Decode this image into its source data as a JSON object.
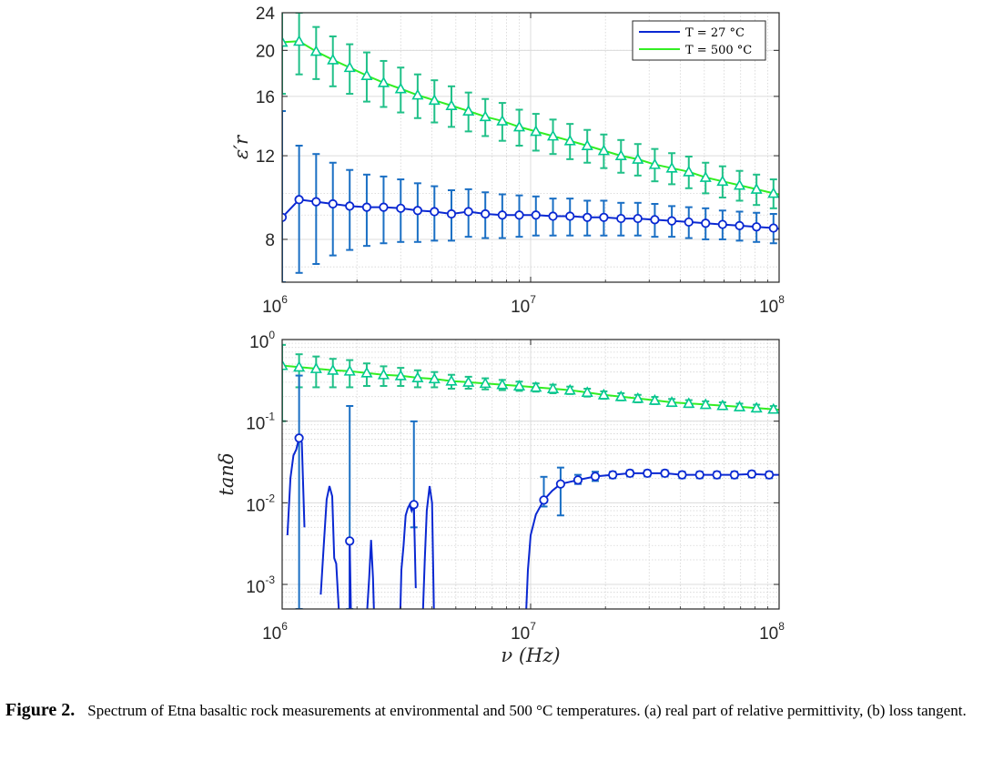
{
  "figure": {
    "label": "Figure 2.",
    "caption": "Spectrum of Etna basaltic rock measurements at environmental and 500 °C temperatures. (a) real part of relative permittivity, (b) loss tangent."
  },
  "colors": {
    "t27": "#0a28d2",
    "t500": "#33ee22",
    "marker500": "#00c890",
    "err27": "#1a6fc4",
    "err500": "#20c088"
  },
  "chart_data": [
    {
      "type": "line",
      "panel": "a",
      "ylabel": "ε′r",
      "x_scale": "log",
      "y_scale": "log",
      "xlim": [
        1000000,
        100000000
      ],
      "ylim": [
        6.5,
        24
      ],
      "x_ticks": [
        {
          "base": "10",
          "exp": "6",
          "value": 1000000
        },
        {
          "base": "10",
          "exp": "7",
          "value": 10000000
        },
        {
          "base": "10",
          "exp": "8",
          "value": 100000000
        }
      ],
      "y_ticks": [
        {
          "label": "8",
          "value": 8
        },
        {
          "label": "12",
          "value": 12
        },
        {
          "label": "16",
          "value": 16
        },
        {
          "label": "20",
          "value": 20
        },
        {
          "label": "24",
          "value": 24
        }
      ],
      "grid": true,
      "legend": {
        "placement": "top-right",
        "entries": [
          "T = 27 °C",
          "T = 500 °C"
        ]
      },
      "x": [
        1000000,
        1170000,
        1370000,
        1600000,
        1870000,
        2190000,
        2560000,
        3000000,
        3510000,
        4100000,
        4800000,
        5620000,
        6570000,
        7690000,
        9000000,
        10500000,
        12300000,
        14400000,
        16900000,
        19700000,
        23100000,
        27000000,
        31600000,
        37000000,
        43300000,
        50600000,
        59200000,
        69300000,
        81100000,
        94900000
      ],
      "series": [
        {
          "name": "T = 27 °C",
          "values": [
            8.9,
            9.7,
            9.6,
            9.5,
            9.4,
            9.35,
            9.35,
            9.3,
            9.2,
            9.15,
            9.05,
            9.15,
            9.05,
            9.0,
            9.0,
            9.0,
            8.95,
            8.95,
            8.9,
            8.9,
            8.85,
            8.85,
            8.8,
            8.75,
            8.7,
            8.65,
            8.6,
            8.55,
            8.5,
            8.45
          ],
          "error": [
            6.0,
            2.9,
            2.5,
            2.1,
            1.8,
            1.6,
            1.5,
            1.4,
            1.3,
            1.2,
            1.1,
            1.05,
            1.0,
            0.95,
            0.9,
            0.85,
            0.8,
            0.8,
            0.75,
            0.75,
            0.7,
            0.7,
            0.7,
            0.65,
            0.65,
            0.65,
            0.6,
            0.6,
            0.6,
            0.6
          ]
        },
        {
          "name": "T = 500 °C",
          "values": [
            20.8,
            20.9,
            19.9,
            19.1,
            18.4,
            17.7,
            17.1,
            16.6,
            16.1,
            15.7,
            15.3,
            14.9,
            14.5,
            14.2,
            13.8,
            13.5,
            13.2,
            12.9,
            12.6,
            12.3,
            12.0,
            11.8,
            11.5,
            11.3,
            11.1,
            10.8,
            10.6,
            10.4,
            10.2,
            10.0
          ],
          "error": [
            4.6,
            3.1,
            2.5,
            2.3,
            2.2,
            2.1,
            1.9,
            1.8,
            1.7,
            1.6,
            1.5,
            1.4,
            1.3,
            1.3,
            1.2,
            1.2,
            1.1,
            1.1,
            1.0,
            1.0,
            0.95,
            0.9,
            0.9,
            0.85,
            0.85,
            0.8,
            0.8,
            0.75,
            0.75,
            0.7
          ]
        }
      ]
    },
    {
      "type": "line",
      "panel": "b",
      "ylabel": "tanδ",
      "xlabel": "ν (Hz)",
      "x_scale": "log",
      "y_scale": "log",
      "xlim": [
        1000000,
        100000000
      ],
      "ylim": [
        0.0005,
        1
      ],
      "x_ticks": [
        {
          "base": "10",
          "exp": "6",
          "value": 1000000
        },
        {
          "base": "10",
          "exp": "7",
          "value": 10000000
        },
        {
          "base": "10",
          "exp": "8",
          "value": 100000000
        }
      ],
      "y_ticks": [
        {
          "base": "10",
          "exp": "-3",
          "value": 0.001
        },
        {
          "base": "10",
          "exp": "-2",
          "value": 0.01
        },
        {
          "base": "10",
          "exp": "-1",
          "value": 0.1
        },
        {
          "base": "10",
          "exp": "0",
          "value": 1
        }
      ],
      "grid": true,
      "series": [
        {
          "name": "T = 27 °C",
          "points": [
            [
              1170000,
              0.062
            ],
            [
              1870000,
              0.0034
            ],
            [
              3390000,
              0.0095
            ],
            [
              11300000,
              0.0108
            ],
            [
              13200000,
              0.017
            ],
            [
              15500000,
              0.019
            ],
            [
              18200000,
              0.021
            ],
            [
              21400000,
              0.022
            ],
            [
              25100000,
              0.023
            ],
            [
              29500000,
              0.023
            ],
            [
              34700000,
              0.023
            ],
            [
              40700000,
              0.022
            ],
            [
              47900000,
              0.022
            ],
            [
              56200000,
              0.022
            ],
            [
              66100000,
              0.022
            ],
            [
              77600000,
              0.0225
            ],
            [
              91200000,
              0.022
            ]
          ],
          "error_low": [
            0.062,
            0.0029,
            0.0045,
            0.0018,
            0.01,
            0.002,
            0.0025,
            0.002,
            0.002,
            0.002,
            0.002,
            0.002,
            0.002,
            0.002,
            0.002,
            0.002,
            0.002
          ],
          "error_high": [
            0.3,
            0.15,
            0.09,
            0.01,
            0.01,
            0.003,
            0.003,
            0.002,
            0.002,
            0.002,
            0.002,
            0.002,
            0.002,
            0.002,
            0.002,
            0.002,
            0.002
          ],
          "curve_segments": [
            [
              [
                1050000,
                0.004
              ],
              [
                1080000,
                0.02
              ],
              [
                1110000,
                0.038
              ],
              [
                1140000,
                0.045
              ],
              [
                1170000,
                0.062
              ],
              [
                1200000,
                0.055
              ],
              [
                1230000,
                0.005
              ]
            ],
            [
              [
                1430000,
                0.00075
              ],
              [
                1470000,
                0.003
              ],
              [
                1510000,
                0.011
              ],
              [
                1550000,
                0.016
              ],
              [
                1590000,
                0.012
              ],
              [
                1620000,
                0.0021
              ],
              [
                1650000,
                0.0018
              ],
              [
                1690000,
                0.0005
              ]
            ],
            [
              [
                1870000,
                0.0005
              ],
              [
                1870000,
                0.0034
              ],
              [
                1890000,
                0.0005
              ]
            ],
            [
              [
                2200000,
                0.0005
              ],
              [
                2240000,
                0.0012
              ],
              [
                2280000,
                0.0035
              ],
              [
                2320000,
                0.0012
              ],
              [
                2340000,
                0.0005
              ]
            ],
            [
              [
                2990000,
                0.0005
              ],
              [
                3020000,
                0.0015
              ],
              [
                3080000,
                0.003
              ],
              [
                3140000,
                0.007
              ],
              [
                3200000,
                0.0085
              ],
              [
                3260000,
                0.0095
              ],
              [
                3320000,
                0.008
              ],
              [
                3390000,
                0.0095
              ],
              [
                3450000,
                0.0009
              ]
            ],
            [
              [
                3690000,
                0.0005
              ],
              [
                3750000,
                0.002
              ],
              [
                3820000,
                0.008
              ],
              [
                3920000,
                0.016
              ],
              [
                4010000,
                0.01
              ],
              [
                4080000,
                0.0005
              ]
            ],
            [
              [
                9600000,
                0.0005
              ],
              [
                9750000,
                0.0015
              ],
              [
                10000000,
                0.004
              ],
              [
                10500000,
                0.0072
              ],
              [
                11300000,
                0.0108
              ],
              [
                12200000,
                0.014
              ],
              [
                13200000,
                0.017
              ],
              [
                15500000,
                0.019
              ],
              [
                18200000,
                0.021
              ],
              [
                21400000,
                0.022
              ],
              [
                25100000,
                0.023
              ],
              [
                29500000,
                0.023
              ],
              [
                34700000,
                0.023
              ],
              [
                40700000,
                0.022
              ],
              [
                47900000,
                0.022
              ],
              [
                56200000,
                0.022
              ],
              [
                66100000,
                0.022
              ],
              [
                77600000,
                0.0225
              ],
              [
                91200000,
                0.022
              ],
              [
                100000000,
                0.022
              ]
            ]
          ]
        },
        {
          "name": "T = 500 °C",
          "x": [
            1000000,
            1170000,
            1370000,
            1600000,
            1870000,
            2190000,
            2560000,
            3000000,
            3510000,
            4100000,
            4800000,
            5620000,
            6570000,
            7690000,
            9000000,
            10500000,
            12300000,
            14400000,
            16900000,
            19700000,
            23100000,
            27000000,
            31600000,
            37000000,
            43300000,
            50600000,
            59200000,
            69300000,
            81100000,
            94900000
          ],
          "values": [
            0.48,
            0.46,
            0.44,
            0.42,
            0.41,
            0.39,
            0.37,
            0.36,
            0.34,
            0.33,
            0.31,
            0.3,
            0.29,
            0.28,
            0.27,
            0.26,
            0.25,
            0.24,
            0.225,
            0.21,
            0.2,
            0.19,
            0.18,
            0.17,
            0.165,
            0.16,
            0.155,
            0.15,
            0.145,
            0.14
          ],
          "error": [
            0.38,
            0.2,
            0.18,
            0.16,
            0.15,
            0.12,
            0.1,
            0.09,
            0.08,
            0.07,
            0.06,
            0.05,
            0.045,
            0.04,
            0.035,
            0.03,
            0.03,
            0.025,
            0.025,
            0.022,
            0.02,
            0.02,
            0.018,
            0.017,
            0.016,
            0.015,
            0.015,
            0.014,
            0.014,
            0.013
          ]
        }
      ]
    }
  ]
}
